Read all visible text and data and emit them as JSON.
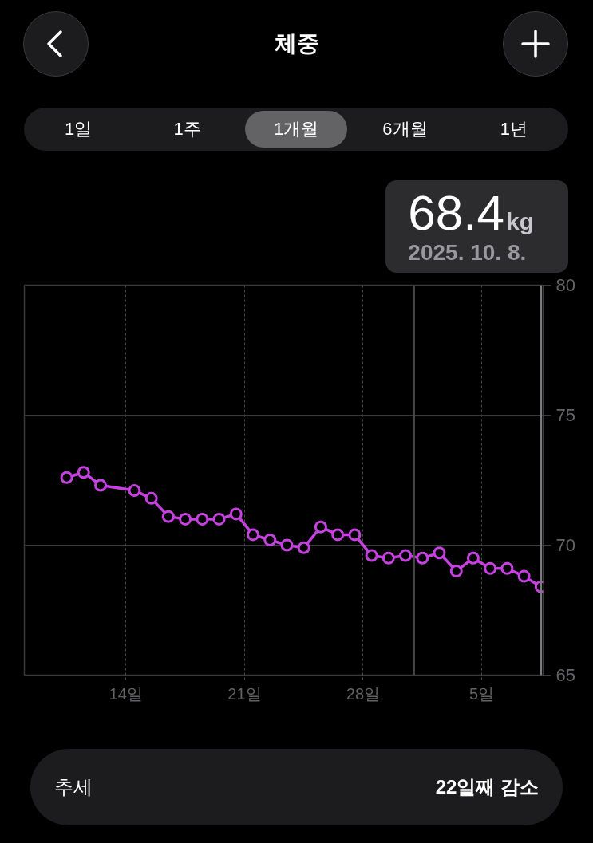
{
  "chart_data": {
    "type": "line",
    "title": "체중",
    "x": [
      "2025-09-10T12:00",
      "2025-09-11T12:00",
      "2025-09-12T12:00",
      "2025-09-14T12:00",
      "2025-09-15T12:00",
      "2025-09-16T12:00",
      "2025-09-17T12:00",
      "2025-09-18T12:00",
      "2025-09-19T12:00",
      "2025-09-20T12:00",
      "2025-09-21T12:00",
      "2025-09-22T12:00",
      "2025-09-23T12:00",
      "2025-09-24T12:00",
      "2025-09-25T12:00",
      "2025-09-26T12:00",
      "2025-09-27T12:00",
      "2025-09-28T12:00",
      "2025-09-29T12:00",
      "2025-09-30T12:00",
      "2025-10-01T12:00",
      "2025-10-02T12:00",
      "2025-10-03T12:00",
      "2025-10-04T12:00",
      "2025-10-05T12:00",
      "2025-10-06T12:00",
      "2025-10-07T12:00",
      "2025-10-08T12:00"
    ],
    "series": [
      {
        "color": "#c641e0",
        "values": [
          72.6,
          72.8,
          72.3,
          72.1,
          71.8,
          71.1,
          71.0,
          71.0,
          71.0,
          71.2,
          70.4,
          70.2,
          70.0,
          69.9,
          70.7,
          70.4,
          70.4,
          69.6,
          69.5,
          69.6,
          69.5,
          69.7,
          69.0,
          69.5,
          69.1,
          69.1,
          68.8,
          68.4
        ]
      }
    ],
    "xlim": [
      "2025-09-08",
      "2025-10-08T15:00"
    ],
    "xticks": [
      {
        "value": "2025-09-14",
        "label": "14일"
      },
      {
        "value": "2025-09-21",
        "label": "21일"
      },
      {
        "value": "2025-09-28",
        "label": "28일"
      },
      {
        "value": "2025-10-05",
        "label": "5일"
      }
    ],
    "ylim": [
      65,
      80
    ],
    "yticks": [
      65,
      70,
      75,
      80
    ],
    "grid": true,
    "marker": "circle",
    "line_style": "solid",
    "ref_lines": [
      {
        "axis": "x",
        "value": "2025-10-01",
        "color": "#48484a"
      },
      {
        "axis": "x",
        "value": "2025-10-08T12:00",
        "color": "#7c7c80"
      }
    ],
    "annotations": [
      "1일",
      "1주",
      "1개월",
      "6개월",
      "1년",
      "68.4kg",
      "2025. 10. 8.",
      "추세",
      "22일째 감소"
    ]
  }
}
